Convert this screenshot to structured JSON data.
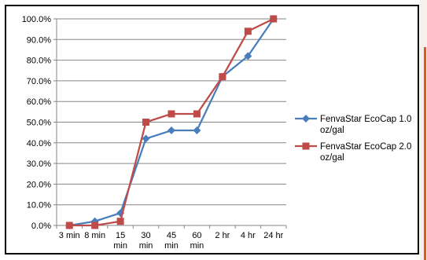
{
  "chart_data": {
    "type": "line",
    "categories": [
      "3 min",
      "8 min",
      "15 min",
      "30 min",
      "45 min",
      "60 min",
      "2 hr",
      "4 hr",
      "24 hr"
    ],
    "category_lines": [
      [
        "3 min"
      ],
      [
        "8 min"
      ],
      [
        "15",
        "min"
      ],
      [
        "30",
        "min"
      ],
      [
        "45",
        "min"
      ],
      [
        "60",
        "min"
      ],
      [
        "2 hr"
      ],
      [
        "4 hr"
      ],
      [
        "24 hr"
      ]
    ],
    "y_ticks": [
      "0.0%",
      "10.0%",
      "20.0%",
      "30.0%",
      "40.0%",
      "50.0%",
      "60.0%",
      "70.0%",
      "80.0%",
      "90.0%",
      "100.0%"
    ],
    "ylim": [
      0,
      100
    ],
    "grid": true,
    "legend_position": "right",
    "series": [
      {
        "name": "FenvaStar EcoCap 1.0 oz/gal",
        "name_lines": [
          "FenvaStar EcoCap 1.0",
          "oz/gal"
        ],
        "marker": "diamond",
        "color": "#4a7ebb",
        "values": [
          0,
          2,
          6,
          42,
          46,
          46,
          72,
          82,
          100
        ]
      },
      {
        "name": "FenvaStar EcoCap 2.0 oz/gal",
        "name_lines": [
          "FenvaStar EcoCap 2.0",
          "oz/gal"
        ],
        "marker": "square",
        "color": "#be4b48",
        "values": [
          0,
          0,
          2,
          50,
          54,
          54,
          72,
          94,
          100
        ]
      }
    ]
  }
}
